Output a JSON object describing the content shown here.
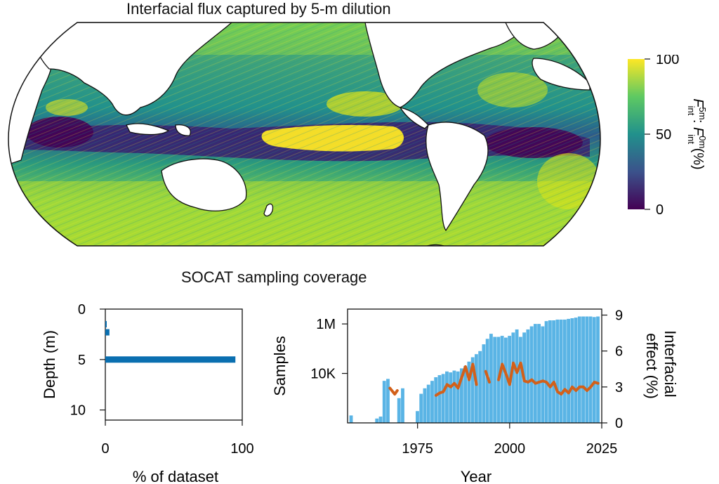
{
  "map": {
    "title": "Interfacial flux captured by 5-m dilution",
    "colorbar": {
      "ticks": [
        "100",
        "50",
        "0"
      ],
      "label_main": "F",
      "label_sup1": "5m",
      "label_sub1": "int",
      "label_colon": " : ",
      "label_sup2": "0m",
      "label_sub2": "int",
      "label_unit": " (%)",
      "min": 0,
      "max": 100,
      "colors": [
        "#440154",
        "#3b528b",
        "#21918c",
        "#5ec962",
        "#fde725"
      ]
    }
  },
  "section_title": "SOCAT sampling coverage",
  "chart_data": [
    {
      "type": "bar",
      "orientation": "horizontal",
      "xlabel": "% of dataset",
      "ylabel": "Depth (m)",
      "xlim": [
        0,
        100
      ],
      "ylim": [
        0,
        11
      ],
      "x_ticks": [
        "0",
        "100"
      ],
      "y_ticks": [
        "0",
        "5",
        "10"
      ],
      "bars": [
        {
          "depth": 1.5,
          "value": 0.3
        },
        {
          "depth": 2.3,
          "value": 3
        },
        {
          "depth": 5.0,
          "value": 95
        }
      ],
      "color": "#0a6fb0"
    },
    {
      "type": "bar",
      "xlabel": "Year",
      "ylabel": "Samples",
      "y2label_line1": "Interfacial",
      "y2label_line2": "effect (%)",
      "x_ticks": [
        "1975",
        "2000",
        "2025"
      ],
      "y_ticks": [
        "1M",
        "10K"
      ],
      "y2_ticks": [
        "9",
        "6",
        "3",
        "0"
      ],
      "xlim": [
        1956,
        2025
      ],
      "y2lim": [
        0,
        9.5
      ],
      "yscale": "log",
      "bar_color": "#5ab4e5",
      "line_color": "#d2601a",
      "samples": {
        "years": [
          1957,
          1958,
          1959,
          1960,
          1961,
          1962,
          1963,
          1964,
          1965,
          1966,
          1967,
          1968,
          1969,
          1970,
          1971,
          1972,
          1973,
          1974,
          1975,
          1976,
          1977,
          1978,
          1979,
          1980,
          1981,
          1982,
          1983,
          1984,
          1985,
          1986,
          1987,
          1988,
          1989,
          1990,
          1991,
          1992,
          1993,
          1994,
          1995,
          1996,
          1997,
          1998,
          1999,
          2000,
          2001,
          2002,
          2003,
          2004,
          2005,
          2006,
          2007,
          2008,
          2009,
          2010,
          2011,
          2012,
          2013,
          2014,
          2015,
          2016,
          2017,
          2018,
          2019,
          2020,
          2021,
          2022,
          2023,
          2024
        ],
        "values": [
          200,
          0,
          0,
          0,
          0,
          0,
          100,
          150,
          180,
          5000,
          6000,
          0,
          100,
          1000,
          2500,
          0,
          0,
          0,
          300,
          1500,
          2500,
          3500,
          5000,
          7000,
          8500,
          9500,
          12000,
          11000,
          13000,
          12000,
          16000,
          20000,
          30000,
          45000,
          60000,
          80000,
          150000,
          250000,
          400000,
          300000,
          300000,
          330000,
          280000,
          330000,
          450000,
          600000,
          300000,
          450000,
          600000,
          800000,
          1000000,
          1000000,
          800000,
          1300000,
          1400000,
          1400000,
          1500000,
          1500000,
          1500000,
          1600000,
          1700000,
          1800000,
          2000000,
          2000000,
          2000000,
          2000000,
          1900000,
          2000000
        ]
      },
      "interfacial_effect": {
        "segments": [
          {
            "years": [
              1967.5,
              1968.8,
              1969.5
            ],
            "values": [
              2.9,
              2.4,
              2.7
            ]
          },
          {
            "years": [
              1980,
              1981,
              1982,
              1983,
              1984,
              1985,
              1986,
              1987,
              1988,
              1989,
              1990,
              1991
            ],
            "values": [
              2.3,
              2.5,
              2.6,
              3.2,
              3.0,
              3.3,
              2.9,
              3.8,
              4.7,
              3.6,
              4.9,
              3.2
            ]
          },
          {
            "years": [
              1993.5,
              1994.5
            ],
            "values": [
              4.3,
              3.4
            ]
          },
          {
            "years": [
              1997,
              1998,
              1999,
              2000,
              2001,
              2002,
              2003,
              2004,
              2005,
              2006,
              2007,
              2008,
              2009,
              2010,
              2011,
              2012,
              2013,
              2014,
              2015,
              2016,
              2017,
              2018,
              2019,
              2020,
              2021,
              2022,
              2023,
              2024
            ],
            "values": [
              3.6,
              4.9,
              4.1,
              3.2,
              5.0,
              4.2,
              5.0,
              3.5,
              3.4,
              3.6,
              3.3,
              3.4,
              3.5,
              3.4,
              3.0,
              3.4,
              2.6,
              2.4,
              2.8,
              2.5,
              3.0,
              2.7,
              3.0,
              3.0,
              2.7,
              3.0,
              3.4,
              3.3
            ]
          }
        ]
      }
    }
  ]
}
